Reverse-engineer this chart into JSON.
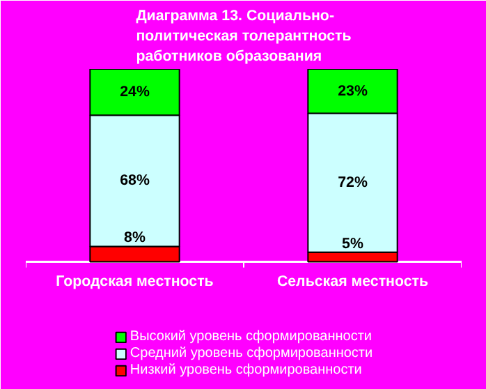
{
  "chart_data": {
    "type": "bar",
    "stacked": true,
    "title": "Диаграмма 13. Социально-\nполитическая толерантность\nработников образования",
    "categories": [
      "Городская местность",
      "Сельская местность"
    ],
    "series": [
      {
        "name": "Низкий уровень сформированности",
        "color": "#ff0000",
        "values": [
          8,
          5
        ],
        "value_labels": [
          "8%",
          "5%"
        ]
      },
      {
        "name": "Средний уровень сформированности",
        "color": "#ccffff",
        "values": [
          68,
          72
        ],
        "value_labels": [
          "68%",
          "72%"
        ]
      },
      {
        "name": "Высокий уровень сформированности",
        "color": "#00ff00",
        "values": [
          24,
          23
        ],
        "value_labels": [
          "24%",
          "23%"
        ]
      }
    ],
    "legend": "bottom"
  }
}
